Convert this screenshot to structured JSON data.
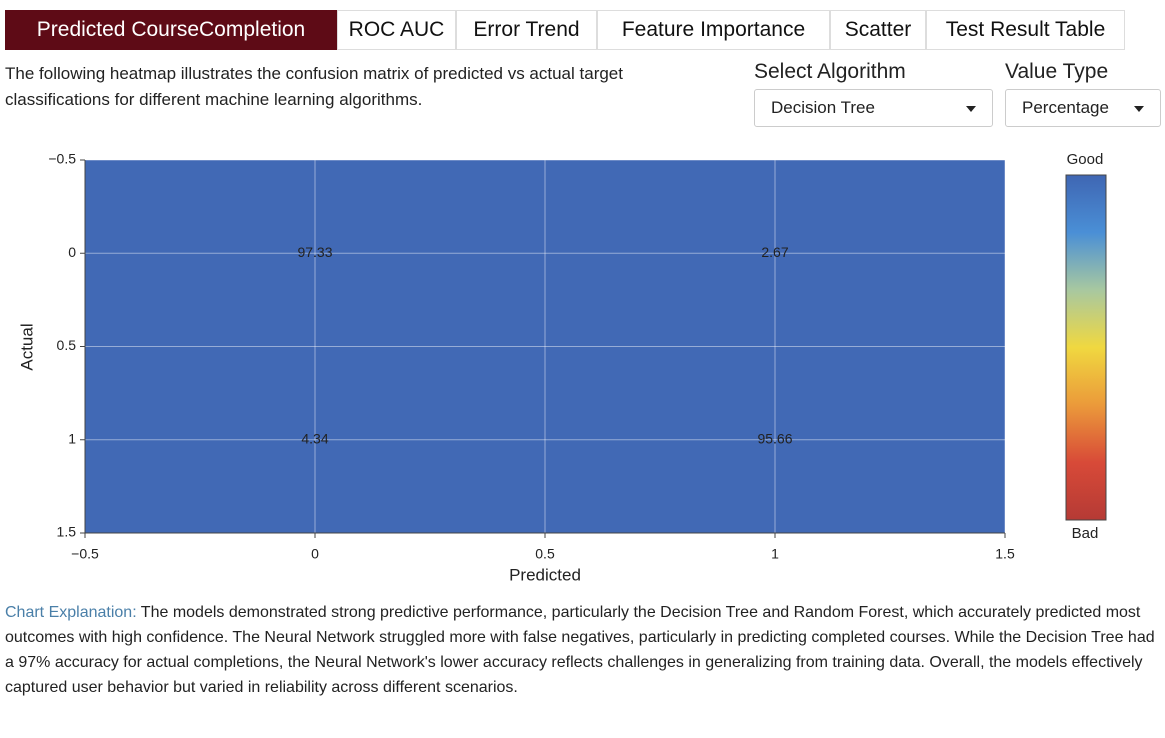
{
  "tabs": [
    "Predicted CourseCompletion",
    "ROC AUC",
    "Error Trend",
    "Feature Importance",
    "Scatter",
    "Test Result Table"
  ],
  "description": "The following heatmap illustrates the confusion matrix of predicted vs actual target classifications for different machine learning algorithms.",
  "controls": [
    {
      "label": "Select Algorithm",
      "value": "Decision Tree"
    },
    {
      "label": "Value Type",
      "value": "Percentage"
    }
  ],
  "chart_data": {
    "type": "heatmap",
    "x_label": "Predicted",
    "y_label": "Actual",
    "x": [
      0,
      1
    ],
    "y": [
      0,
      1
    ],
    "z": [
      [
        97.33,
        2.67
      ],
      [
        4.34,
        95.66
      ]
    ],
    "cell_color": "#4169b5",
    "xlim": [
      -0.5,
      1.5
    ],
    "ylim": [
      1.5,
      -0.5
    ],
    "xticks": [
      {
        "value": -0.5,
        "label": "−0.5"
      },
      0,
      0.5,
      1,
      1.5
    ],
    "yticks": [
      {
        "value": -0.5,
        "label": "−0.5"
      },
      0,
      0.5,
      1,
      1.5
    ],
    "grid": true,
    "colorbar": {
      "top_label": "Good",
      "bottom_label": "Bad",
      "colors": [
        "#3f66b3",
        "#4a8fd6",
        "#a8c8a0",
        "#f0d840",
        "#eb9a3a",
        "#d84a38",
        "#b53a35"
      ]
    }
  },
  "explanation": {
    "label": "Chart Explanation:",
    "text": "The models demonstrated strong predictive performance, particularly the Decision Tree and Random Forest, which accurately predicted most outcomes with high confidence. The Neural Network struggled more with false negatives, particularly in predicting completed courses. While the Decision Tree had a 97% accuracy for actual completions, the Neural Network's lower accuracy reflects challenges in generalizing from training data. Overall, the models effectively captured user behavior but varied in reliability across different scenarios."
  }
}
